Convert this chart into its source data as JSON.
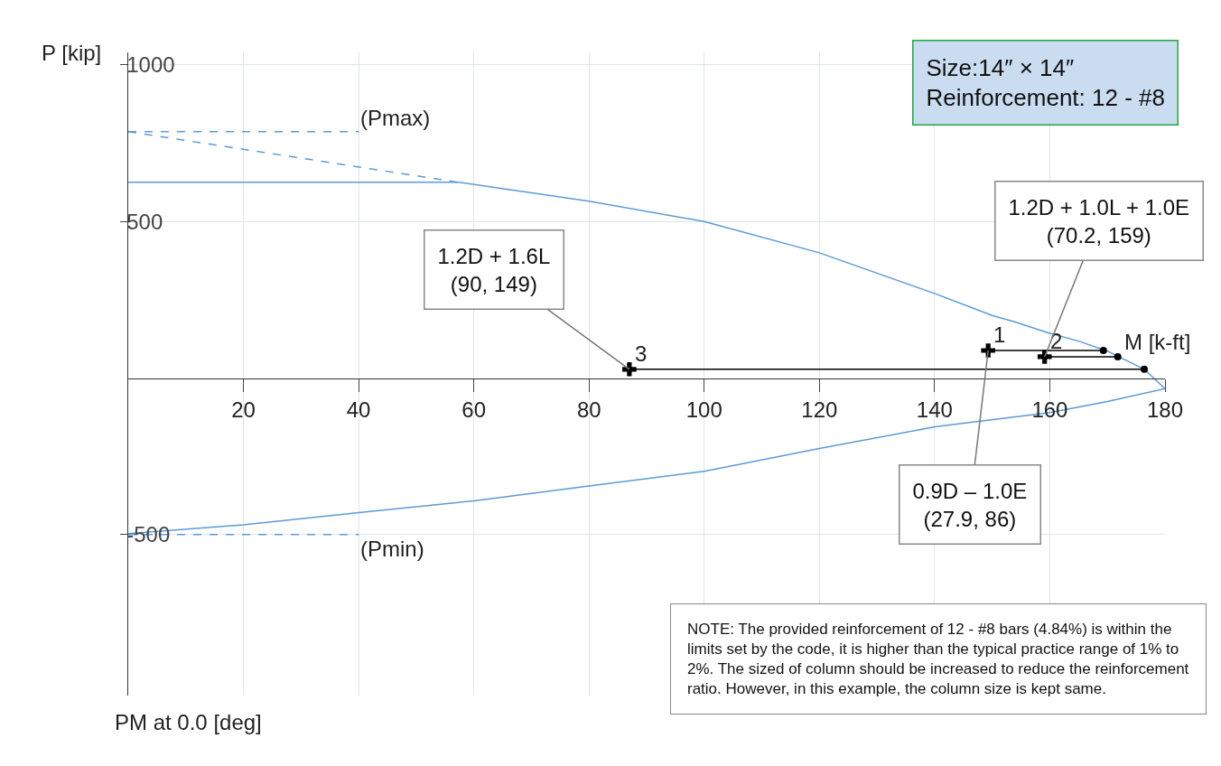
{
  "chart_data": {
    "type": "line",
    "ylabel": "P [kip]",
    "xlabel": "M [k-ft]",
    "xlim": [
      0,
      180
    ],
    "xticks": [
      20,
      40,
      60,
      80,
      100,
      120,
      140,
      160,
      180
    ],
    "ylim": [
      -1014,
      1040
    ],
    "yticks": [
      -500,
      500,
      1000
    ],
    "grid": true,
    "series": [
      {
        "color": "#5b9bd5",
        "line_style": "solid",
        "marker": "none",
        "x": [
          0,
          57.4,
          80,
          100,
          120,
          140,
          150,
          154,
          159.6,
          165,
          170,
          176.4,
          180,
          170,
          160,
          140,
          120,
          100,
          80,
          60,
          40,
          20,
          0
        ],
        "values": [
          625,
          625,
          565,
          500,
          400,
          270,
          200,
          179,
          145,
          118,
          86,
          28,
          -34,
          -75,
          -110,
          -156,
          -225,
          -298,
          -345,
          -392,
          -430,
          -469,
          -497
        ]
      },
      {
        "color": "#5b9bd5",
        "line_style": "dashed",
        "marker": "none",
        "x": [
          0,
          40
        ],
        "values": [
          787,
          787
        ]
      },
      {
        "color": "#5b9bd5",
        "line_style": "dashed",
        "marker": "none",
        "x": [
          0,
          57.4
        ],
        "values": [
          787,
          625
        ]
      },
      {
        "color": "#5b9bd5",
        "line_style": "dashed",
        "marker": "none",
        "x": [
          0,
          40
        ],
        "values": [
          -500,
          -500
        ]
      },
      {
        "color": "#000000",
        "line_style": "solid",
        "marker": "none",
        "x": [
          149.3,
          169.3
        ],
        "values": [
          88,
          88
        ]
      },
      {
        "color": "#000000",
        "line_style": "solid",
        "marker": "none",
        "x": [
          159.1,
          171.8
        ],
        "values": [
          68,
          68
        ]
      },
      {
        "color": "#000000",
        "line_style": "solid",
        "marker": "none",
        "x": [
          87,
          176.4
        ],
        "values": [
          28,
          28
        ]
      },
      {
        "type": "scatter",
        "color": "#000000",
        "marker": "cross",
        "x": [
          149.3,
          159.1,
          87
        ],
        "values": [
          88,
          68,
          28
        ]
      },
      {
        "type": "scatter",
        "color": "#000000",
        "marker": "circle",
        "x": [
          169.3,
          171.8,
          176.4
        ],
        "values": [
          88,
          68,
          28
        ]
      }
    ],
    "annotations": [
      {
        "text": "1",
        "x": 149.3,
        "y": 88
      },
      {
        "text": "2",
        "x": 159.1,
        "y": 68
      },
      {
        "text": "3",
        "x": 87,
        "y": 28
      },
      {
        "text": "(Pmax)",
        "x": 40,
        "y": 787
      },
      {
        "text": "(Pmin)",
        "x": 40,
        "y": -500
      },
      {
        "text": "1.2D + 1.6L\n(90, 149)",
        "x": 87,
        "y": 28
      },
      {
        "text": "1.2D + 1.0L + 1.0E\n(70.2, 159)",
        "x": 159.1,
        "y": 68
      },
      {
        "text": "0.9D – 1.0E\n(27.9, 86)",
        "x": 149.3,
        "y": 88
      },
      "Size:14″ × 14″\nReinforcement: 12 - #8",
      "PM at 0.0 [deg]",
      "NOTE: The provided reinforcement of 12 - #8 bars (4.84%) is within the\nlimits set by the code, it is higher than the typical practice range of 1% to\n2%. The sized of column should be increased to reduce the reinforcement\nratio. However, in this example, the column size is kept same."
    ]
  }
}
